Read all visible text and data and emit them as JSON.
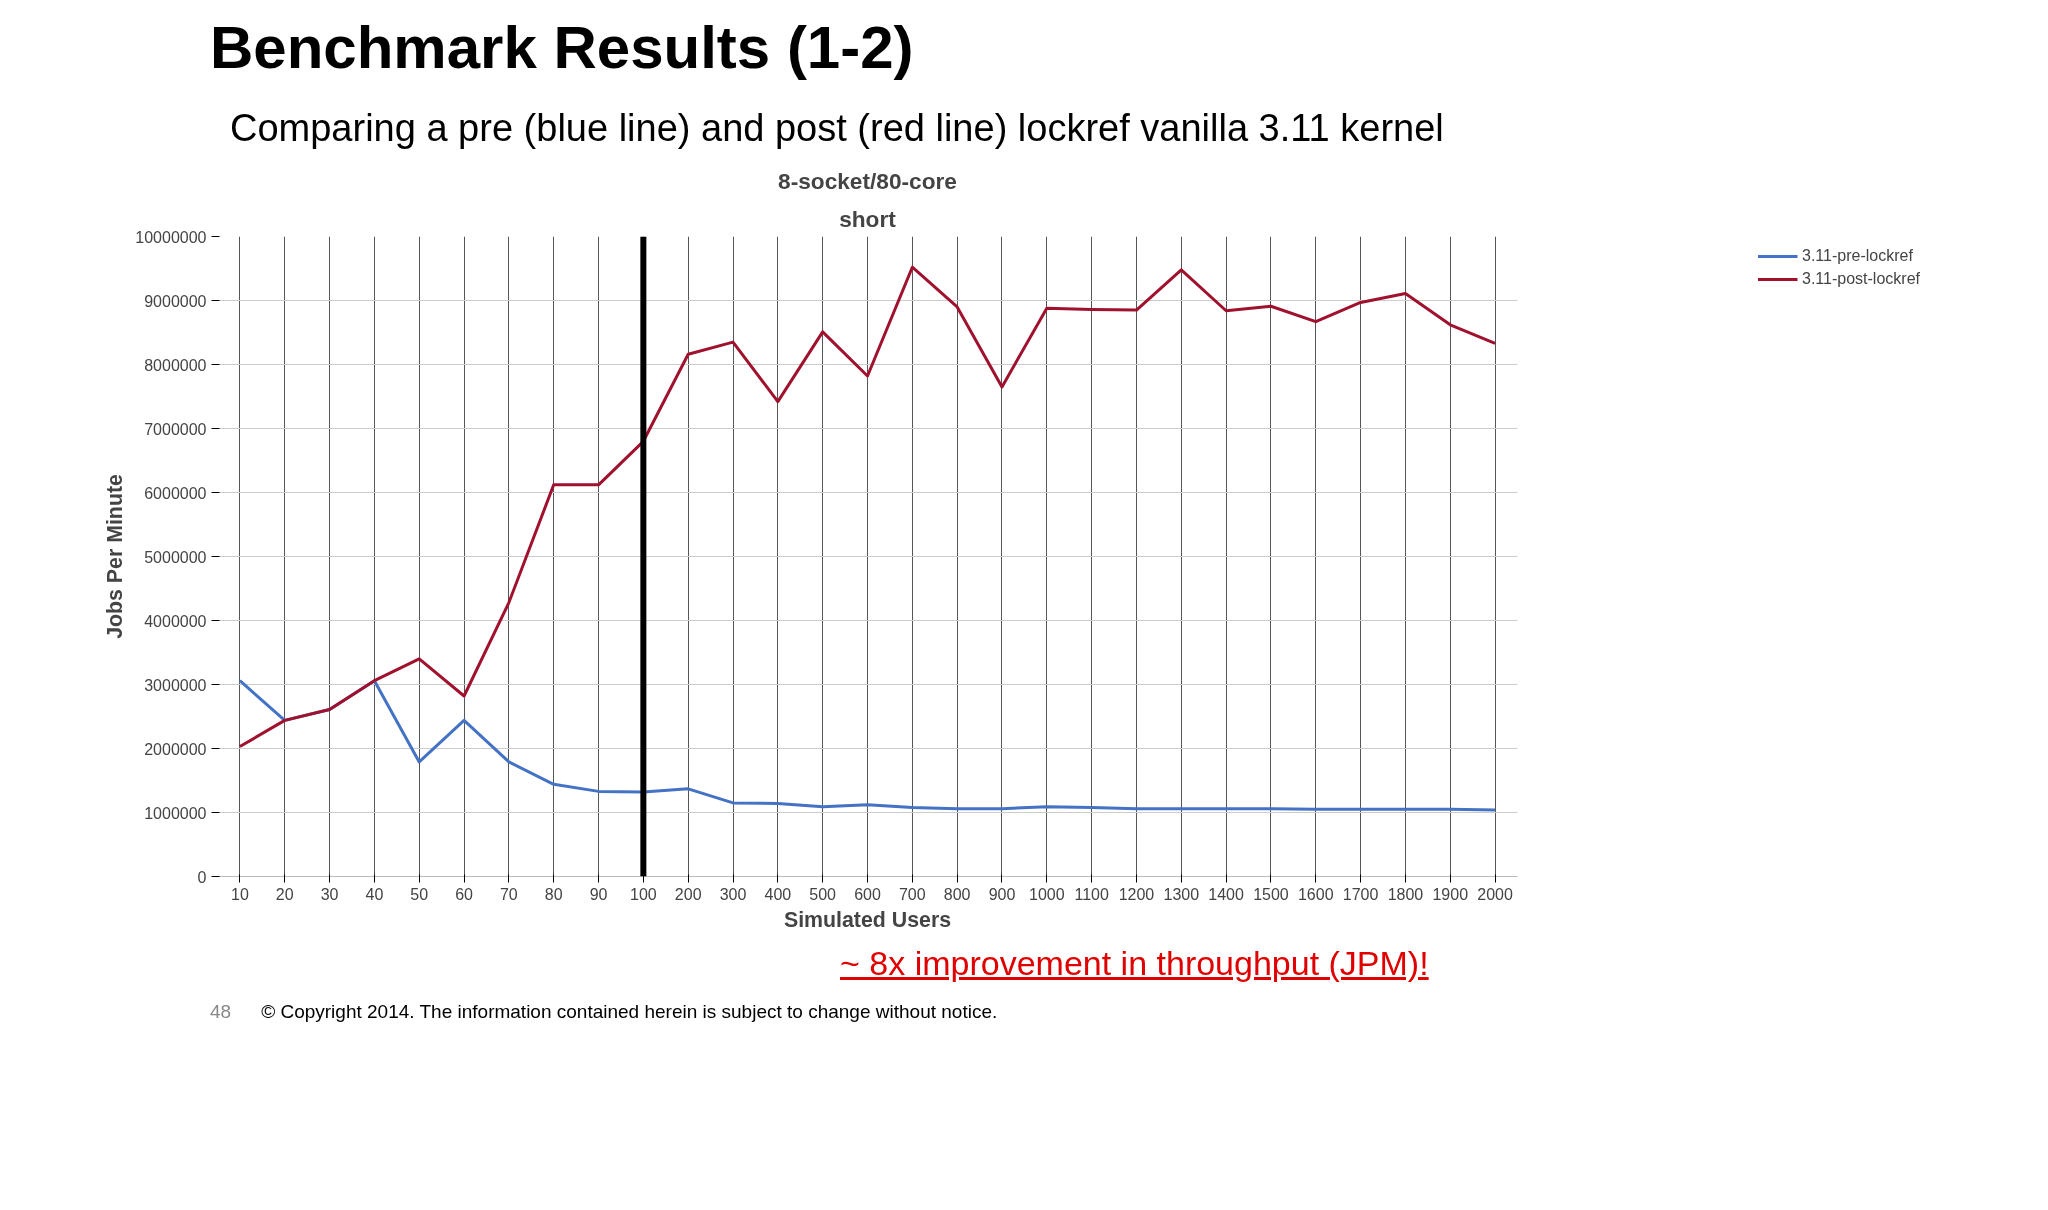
{
  "chart_data": {
    "type": "line",
    "title": "Benchmark Results (1-2)",
    "subtitle": "Comparing a pre (blue line) and post (red line) lockref vanilla 3.11 kernel",
    "xlabel": "Simulated Users",
    "ylabel": "Jobs Per Minute",
    "categories": [
      "10",
      "20",
      "30",
      "40",
      "50",
      "60",
      "70",
      "80",
      "90",
      "100",
      "200",
      "300",
      "400",
      "500",
      "600",
      "700",
      "800",
      "900",
      "1000",
      "1100",
      "1200",
      "1300",
      "1400",
      "1500",
      "1600",
      "1700",
      "1800",
      "1900",
      "2000"
    ],
    "series": [
      {
        "name": "3.11-pre-lockref",
        "color": "#4472c4",
        "values": [
          3060000,
          2440000,
          2610000,
          3060000,
          1790000,
          2440000,
          1790000,
          1440000,
          1330000,
          1320000,
          1370000,
          1150000,
          1140000,
          1090000,
          1120000,
          1080000,
          1060000,
          1060000,
          1090000,
          1080000,
          1060000,
          1060000,
          1060000,
          1060000,
          1050000,
          1050000,
          1050000,
          1050000,
          1040000
        ]
      },
      {
        "name": "3.11-post-lockref",
        "color": "#a0112e",
        "values": [
          2030000,
          2440000,
          2610000,
          3060000,
          3400000,
          2820000,
          4280000,
          6120000,
          6120000,
          6800000,
          8160000,
          8350000,
          7420000,
          8510000,
          7820000,
          9520000,
          8900000,
          7650000,
          8880000,
          8860000,
          8850000,
          9480000,
          8840000,
          8910000,
          8670000,
          8970000,
          9110000,
          8620000,
          8330000
        ]
      }
    ],
    "ylim": [
      0,
      10000000
    ],
    "yticks": [
      0,
      1000000,
      2000000,
      3000000,
      4000000,
      5000000,
      6000000,
      7000000,
      8000000,
      9000000,
      10000000
    ],
    "ref_lines": [
      {
        "axis": "x",
        "value": "100",
        "color": "#000000"
      }
    ],
    "grid": true,
    "legend": "top right",
    "marker": "none",
    "line_style": "solid",
    "annotations": [
      "8-socket/80-core",
      "short",
      "~ 8x improvement in throughput (JPM)!",
      "48",
      "© Copyright 2014. The information contained herein is subject to change without notice."
    ]
  }
}
